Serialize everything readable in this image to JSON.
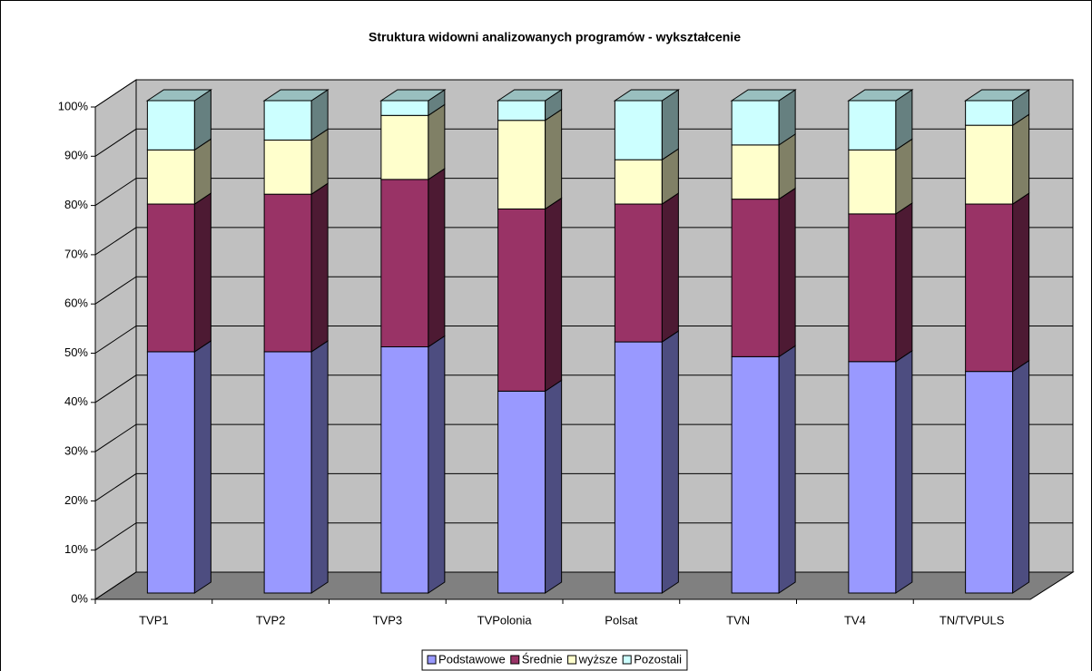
{
  "chart_data": {
    "type": "stacked_bar_3d",
    "title": "Struktura widowni analizowanych programów - wykształcenie",
    "categories": [
      "TVP1",
      "TVP2",
      "TVP3",
      "TVPolonia",
      "Polsat",
      "TVN",
      "TV4",
      "TN/TVPULS"
    ],
    "series": [
      {
        "name": "Podstawowe",
        "color": "#9999ff",
        "values": [
          49,
          49,
          50,
          41,
          51,
          48,
          47,
          45
        ]
      },
      {
        "name": "Średnie",
        "color": "#993366",
        "values": [
          30,
          32,
          34,
          37,
          28,
          32,
          30,
          34
        ]
      },
      {
        "name": "wyższe",
        "color": "#ffffcc",
        "values": [
          11,
          11,
          13,
          18,
          9,
          11,
          13,
          16
        ]
      },
      {
        "name": "Pozostali",
        "color": "#ccffff",
        "values": [
          10,
          8,
          3,
          4,
          12,
          9,
          10,
          5
        ]
      }
    ],
    "ylim": [
      0,
      100
    ],
    "yticks": [
      {
        "value": 0,
        "label": "0%"
      },
      {
        "value": 10,
        "label": "10%"
      },
      {
        "value": 20,
        "label": "20%"
      },
      {
        "value": 30,
        "label": "30%"
      },
      {
        "value": 40,
        "label": "40%"
      },
      {
        "value": 50,
        "label": "50%"
      },
      {
        "value": 60,
        "label": "60%"
      },
      {
        "value": 70,
        "label": "70%"
      },
      {
        "value": 80,
        "label": "80%"
      },
      {
        "value": 90,
        "label": "90%"
      },
      {
        "value": 100,
        "label": "100%"
      }
    ],
    "grid": true,
    "legend": "bottom"
  }
}
